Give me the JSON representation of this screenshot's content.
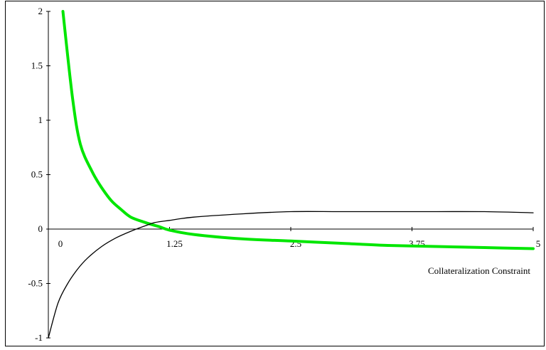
{
  "chart_data": {
    "type": "line",
    "title": "",
    "xlabel": "Collateralization Constraint",
    "ylabel": "",
    "xlim": [
      0,
      5
    ],
    "ylim": [
      -1,
      2
    ],
    "grid": false,
    "x_ticks": [
      0,
      1.25,
      2.5,
      3.75,
      5
    ],
    "x_tick_labels": [
      "0",
      "1.25",
      "2.5",
      "3.75",
      "5"
    ],
    "y_ticks": [
      -1,
      -0.5,
      0,
      0.5,
      1,
      1.5,
      2
    ],
    "y_tick_labels": [
      "-1",
      "-0.5",
      "0",
      "0.5",
      "1",
      "1.5",
      "2"
    ],
    "series": [
      {
        "color": "#00e600",
        "x": [
          0.15,
          0.25,
          0.33,
          0.45,
          0.55,
          0.65,
          0.75,
          0.85,
          1.0,
          1.15,
          1.25,
          1.5,
          2.0,
          2.5,
          3.0,
          3.5,
          4.0,
          4.5,
          5.0
        ],
        "values": [
          2.0,
          1.2,
          0.78,
          0.53,
          0.38,
          0.26,
          0.18,
          0.11,
          0.06,
          0.02,
          -0.01,
          -0.05,
          -0.09,
          -0.11,
          -0.13,
          -0.15,
          -0.16,
          -0.17,
          -0.18
        ]
      },
      {
        "color": "#000000",
        "x": [
          0.0,
          0.1,
          0.2,
          0.3,
          0.4,
          0.55,
          0.7,
          0.85,
          1.0,
          1.1,
          1.25,
          1.5,
          2.0,
          2.5,
          3.0,
          3.5,
          4.0,
          4.5,
          5.0
        ],
        "values": [
          -1.0,
          -0.68,
          -0.5,
          -0.37,
          -0.27,
          -0.16,
          -0.08,
          -0.02,
          0.03,
          0.06,
          0.08,
          0.11,
          0.14,
          0.16,
          0.16,
          0.16,
          0.16,
          0.16,
          0.15
        ]
      }
    ]
  }
}
